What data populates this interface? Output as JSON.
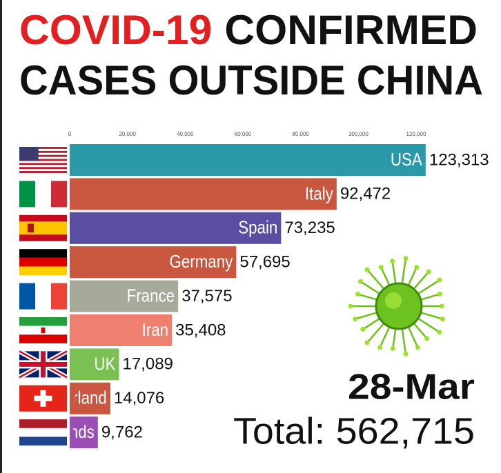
{
  "chart_data": {
    "type": "bar",
    "orientation": "horizontal",
    "title_part1": "COVID-19",
    "title_part2": "CONFIRMED",
    "title_line2": "CASES OUTSIDE CHINA",
    "categories": [
      "USA",
      "Italy",
      "Spain",
      "Germany",
      "France",
      "Iran",
      "UK",
      "Switzerland",
      "Netherlands"
    ],
    "values": [
      123313,
      92472,
      73235,
      57695,
      37575,
      35408,
      17089,
      14076,
      9762
    ],
    "value_labels": [
      "123,313",
      "92,472",
      "73,235",
      "57,695",
      "37,575",
      "35,408",
      "17,089",
      "14,076",
      "9,762"
    ],
    "colors": [
      "#2b9aa8",
      "#c9573f",
      "#5a4ea3",
      "#c9573f",
      "#a7aa9b",
      "#ef8070",
      "#7bc052",
      "#c9573f",
      "#9a4fb5"
    ],
    "xlim": [
      0,
      120000
    ],
    "xticks": [
      0,
      {
        "value": 20000,
        "label": "20,000"
      },
      {
        "value": 40000,
        "label": "40,000"
      },
      {
        "value": 60000,
        "label": "60,000"
      },
      {
        "value": 80000,
        "label": "80,000"
      },
      {
        "value": 100000,
        "label": "100,000"
      },
      {
        "value": 120000,
        "label": "120,000"
      }
    ],
    "date": "28-Mar",
    "total": "Total: 562,715"
  }
}
